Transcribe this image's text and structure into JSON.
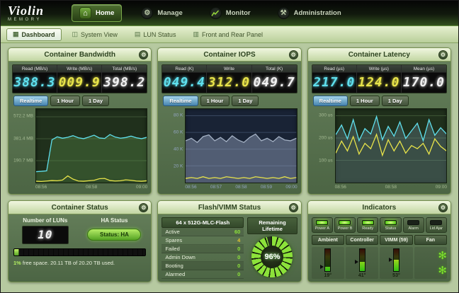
{
  "logo": {
    "name": "Violin",
    "sub": "MEMORY"
  },
  "icons": {
    "home": "⌂",
    "manage_gear": "⚙",
    "admin_tools": "⚒",
    "panel_gear": "⚙",
    "fan": "✻",
    "tab_dashboard": "▦",
    "tab_system": "◫",
    "tab_lun": "▤",
    "tab_panel": "▥"
  },
  "nav": {
    "items": [
      {
        "label": "Home"
      },
      {
        "label": "Manage"
      },
      {
        "label": "Monitor"
      },
      {
        "label": "Administration"
      }
    ]
  },
  "tabs": {
    "items": [
      {
        "label": "Dashboard"
      },
      {
        "label": "System View"
      },
      {
        "label": "LUN Status"
      },
      {
        "label": "Front and Rear Panel"
      }
    ]
  },
  "panels": {
    "bandwidth": {
      "title": "Container Bandwidth",
      "readouts": [
        {
          "label": "Read (MB/s)",
          "value": "388.3",
          "color": "#5fe0ee"
        },
        {
          "label": "Write (MB/s)",
          "value": "009.9",
          "color": "#e8e44a"
        },
        {
          "label": "Total (MB/s)",
          "value": "398.2",
          "color": "#f2f2f2"
        }
      ],
      "range_buttons": [
        "Realtime",
        "1 Hour",
        "1 Day"
      ],
      "chart": {
        "type": "line",
        "ymin": 0,
        "ymax": 640,
        "bg": "#20301c",
        "gridColor": "#3c5434",
        "labelColor": "#a6bb94",
        "grid": [
          {
            "v": 572.2,
            "label": "572.2 MB"
          },
          {
            "v": 381.4,
            "label": "381.4 MB"
          },
          {
            "v": 190.7,
            "label": "190.7 MB"
          }
        ],
        "xlabels": [
          "08:56",
          "08:58",
          "09:00"
        ],
        "series": [
          {
            "name": "Read",
            "color": "#5fe0ee",
            "fill": "rgba(110,180,90,0.25)",
            "values": [
              95,
              98,
              102,
              372,
              398,
              386,
              394,
              408,
              390,
              382,
              396,
              412,
              388,
              384,
              418,
              396,
              386,
              392,
              404,
              390,
              382,
              394
            ]
          },
          {
            "name": "Write",
            "color": "#e8e44a",
            "values": [
              12,
              10,
              14,
              18,
              16,
              22,
              58,
              30,
              14,
              12,
              16,
              20,
              34,
              36,
              18,
              14,
              16,
              24,
              20,
              14,
              12,
              16
            ]
          }
        ]
      }
    },
    "iops": {
      "title": "Container IOPS",
      "readouts": [
        {
          "label": "Read (K)",
          "value": "049.4",
          "color": "#5fe0ee"
        },
        {
          "label": "Write",
          "value": "312.0",
          "color": "#e8e44a"
        },
        {
          "label": "Total (K)",
          "value": "049.7",
          "color": "#f2f2f2"
        }
      ],
      "range_buttons": [
        "Realtime",
        "1 Hour",
        "1 Day"
      ],
      "chart": {
        "type": "area",
        "ymin": 0,
        "ymax": 88,
        "bg": "#192335",
        "gridColor": "#394760",
        "labelColor": "#93a5c4",
        "grid": [
          {
            "v": 80,
            "label": "80 K"
          },
          {
            "v": 60,
            "label": "60 K"
          },
          {
            "v": 40,
            "label": "40 K"
          },
          {
            "v": 20,
            "label": "20 K"
          }
        ],
        "xlabels": [
          "08:56",
          "08:57",
          "08:58",
          "08:59",
          "09:00"
        ],
        "series": [
          {
            "name": "Total",
            "color": "#a4b1c4",
            "fill": "rgba(150,165,190,0.45)",
            "values": [
              50,
              53,
              48,
              55,
              57,
              50,
              54,
              49,
              56,
              51,
              48,
              54,
              58,
              50,
              53,
              49,
              55,
              51,
              50,
              53
            ]
          },
          {
            "name": "Write",
            "color": "#e8e44a",
            "values": [
              5,
              6,
              5,
              7,
              5,
              6,
              5,
              7,
              6,
              5,
              6,
              5,
              7,
              6,
              5,
              6,
              5,
              7,
              5,
              6
            ]
          }
        ]
      }
    },
    "latency": {
      "title": "Container Latency",
      "readouts": [
        {
          "label": "Read (µs)",
          "value": "217.0",
          "color": "#5fe0ee"
        },
        {
          "label": "Write (µs)",
          "value": "124.0",
          "color": "#e8e44a"
        },
        {
          "label": "Mean (µs)",
          "value": "170.0",
          "color": "#f2f2f2"
        }
      ],
      "range_buttons": [
        "Realtime",
        "1 Hour",
        "1 Day"
      ],
      "chart": {
        "type": "line",
        "ymin": 0,
        "ymax": 330,
        "bg": "#20301c",
        "gridColor": "#3c5434",
        "labelColor": "#a6bb94",
        "grid": [
          {
            "v": 300,
            "label": "300 us"
          },
          {
            "v": 200,
            "label": "200 us"
          },
          {
            "v": 100,
            "label": "100 us"
          }
        ],
        "xlabels": [
          "08:56",
          "08:58",
          "09:00"
        ],
        "series": [
          {
            "name": "Read",
            "color": "#5fe0ee",
            "fill": "rgba(120,150,170,0.30)",
            "values": [
              215,
              258,
              196,
              282,
              188,
              242,
              218,
              296,
              192,
              252,
              208,
              272,
              198,
              232,
              266,
              188,
              282,
              212,
              246,
              218
            ]
          },
          {
            "name": "Write",
            "color": "#e8e44a",
            "values": [
              132,
              186,
              142,
              206,
              128,
              176,
              152,
              216,
              122,
              192,
              142,
              186,
              132,
              166,
              152,
              176,
              128,
              196,
              162,
              142
            ]
          }
        ]
      }
    },
    "status": {
      "title": "Container Status",
      "luns_label": "Number of LUNs",
      "luns_value": "10",
      "ha_label": "HA Status",
      "ha_value": "Status: HA",
      "bar_pct": 4,
      "free_pct": "1%",
      "free_text": " free space. 20.11 TB of 20.20 TB used."
    },
    "flash": {
      "title": "Flash/VIMM Status",
      "table_header": "64 x 512G-MLC-Flash",
      "rows": [
        {
          "label": "Active",
          "value": "60",
          "color": "#8ce23a"
        },
        {
          "label": "Spares",
          "value": "4",
          "color": "#e0c030"
        },
        {
          "label": "Failed",
          "value": "0",
          "color": "#8ce23a"
        },
        {
          "label": "Admin Down",
          "value": "0",
          "color": "#8ce23a"
        },
        {
          "label": "Booting",
          "value": "0",
          "color": "#8ce23a"
        },
        {
          "label": "Alarmed",
          "value": "0",
          "color": "#8ce23a"
        }
      ],
      "lifetime_header": "Remaining Lifetime",
      "lifetime": {
        "pct": 96,
        "label": "96%"
      }
    },
    "indicators": {
      "title": "Indicators",
      "leds": [
        {
          "label": "Power A",
          "on": true
        },
        {
          "label": "Power B",
          "on": true
        },
        {
          "label": "Ready",
          "on": true
        },
        {
          "label": "Status",
          "on": true
        },
        {
          "label": "Alarm",
          "on": false
        },
        {
          "label": "Lid Ajar",
          "on": false
        }
      ],
      "tabs": [
        "Ambient",
        "Controller",
        "VIMM (59)",
        "Fan"
      ],
      "gauges": [
        {
          "pct": 19,
          "label": "19°"
        },
        {
          "pct": 41,
          "label": "41°"
        },
        {
          "pct": 53,
          "label": "53°"
        }
      ]
    }
  }
}
